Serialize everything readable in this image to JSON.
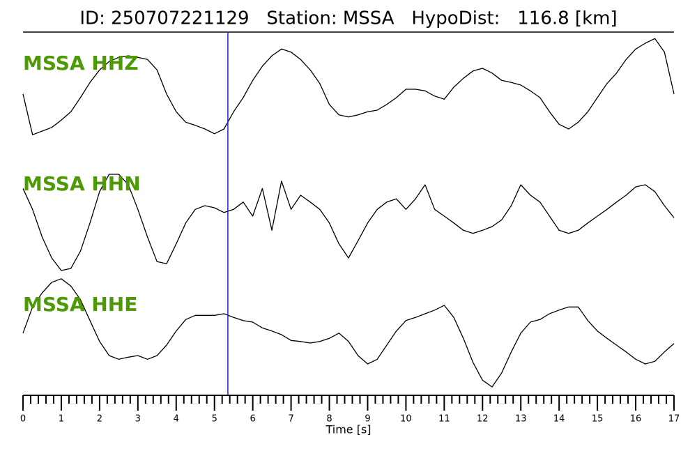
{
  "chart_data": {
    "type": "seismogram",
    "title": "ID: 250707221129   Station: MSSA   HypoDist:   116.8 [km]",
    "xlabel": "Time [s]",
    "xlim": [
      0,
      17
    ],
    "xticks": [
      0,
      1,
      2,
      3,
      4,
      5,
      6,
      7,
      8,
      9,
      10,
      11,
      12,
      13,
      14,
      15,
      16,
      17
    ],
    "xminorticks": [
      0.2,
      0.4,
      0.6,
      0.8,
      1.2,
      1.4,
      1.6,
      1.8,
      2.2,
      2.4,
      2.6,
      2.8,
      3.2,
      3.4,
      3.6,
      3.8,
      4.2,
      4.4,
      4.6,
      4.8,
      5.2,
      5.4,
      5.6,
      5.8,
      6.2,
      6.4,
      6.6,
      6.8,
      7.2,
      7.4,
      7.6,
      7.8,
      8.2,
      8.4,
      8.6,
      8.8,
      9.2,
      9.4,
      9.6,
      9.8,
      10.2,
      10.4,
      10.6,
      10.8,
      11.2,
      11.4,
      11.6,
      11.8,
      12.2,
      12.4,
      12.6,
      12.8,
      13.2,
      13.4,
      13.6,
      13.8,
      14.2,
      14.4,
      14.6,
      14.8,
      15.2,
      15.4,
      15.6,
      15.8,
      16.2,
      16.4,
      16.6,
      16.8
    ],
    "pick": {
      "x": 5.35,
      "color": "#1f1fd0"
    },
    "label_color": "#4e9a06",
    "x": [
      0,
      0.25,
      0.5,
      0.75,
      1,
      1.25,
      1.5,
      1.75,
      2,
      2.25,
      2.5,
      2.75,
      3,
      3.25,
      3.5,
      3.75,
      4,
      4.25,
      4.5,
      4.75,
      5,
      5.25,
      5.5,
      5.75,
      6,
      6.25,
      6.5,
      6.75,
      7,
      7.25,
      7.5,
      7.75,
      8,
      8.25,
      8.5,
      8.75,
      9,
      9.25,
      9.5,
      9.75,
      10,
      10.25,
      10.5,
      10.75,
      11,
      11.25,
      11.5,
      11.75,
      12,
      12.25,
      12.5,
      12.75,
      13,
      13.25,
      13.5,
      13.75,
      14,
      14.25,
      14.5,
      14.75,
      15,
      15.25,
      15.5,
      15.75,
      16,
      16.25,
      16.5,
      16.75,
      17
    ],
    "series": [
      {
        "name": "MSSA HHZ",
        "color": "#000000",
        "ylim": [
          -1,
          1
        ],
        "values": [
          -0.09,
          -0.87,
          -0.8,
          -0.73,
          -0.59,
          -0.43,
          -0.16,
          0.13,
          0.37,
          0.53,
          0.61,
          0.64,
          0.61,
          0.57,
          0.37,
          -0.09,
          -0.43,
          -0.63,
          -0.69,
          -0.76,
          -0.85,
          -0.76,
          -0.43,
          -0.16,
          0.17,
          0.44,
          0.64,
          0.77,
          0.71,
          0.57,
          0.37,
          0.11,
          -0.29,
          -0.49,
          -0.53,
          -0.49,
          -0.43,
          -0.4,
          -0.29,
          -0.16,
          0,
          0,
          -0.03,
          -0.13,
          -0.19,
          0.04,
          0.21,
          0.35,
          0.4,
          0.31,
          0.17,
          0.13,
          0.08,
          -0.03,
          -0.16,
          -0.43,
          -0.67,
          -0.76,
          -0.63,
          -0.43,
          -0.16,
          0.11,
          0.31,
          0.57,
          0.77,
          0.88,
          0.97,
          0.71,
          -0.09
        ]
      },
      {
        "name": "MSSA HHN",
        "color": "#000000",
        "ylim": [
          -1,
          1
        ],
        "values": [
          0.53,
          0.13,
          -0.4,
          -0.8,
          -1.04,
          -1,
          -0.67,
          -0.13,
          0.47,
          0.8,
          0.8,
          0.6,
          0.13,
          -0.4,
          -0.87,
          -0.91,
          -0.53,
          -0.13,
          0.13,
          0.2,
          0.16,
          0.07,
          0.13,
          0.27,
          0,
          0.53,
          -0.27,
          0.67,
          0.13,
          0.4,
          0.27,
          0.13,
          -0.13,
          -0.53,
          -0.8,
          -0.47,
          -0.13,
          0.13,
          0.27,
          0.33,
          0.13,
          0.33,
          0.6,
          0.13,
          0,
          -0.13,
          -0.27,
          -0.33,
          -0.27,
          -0.2,
          -0.07,
          0.2,
          0.6,
          0.4,
          0.27,
          0,
          -0.27,
          -0.33,
          -0.27,
          -0.13,
          0,
          0.13,
          0.27,
          0.4,
          0.56,
          0.6,
          0.47,
          0.2,
          -0.03
        ]
      },
      {
        "name": "MSSA HHE",
        "color": "#000000",
        "ylim": [
          -1,
          1
        ],
        "values": [
          0.03,
          0.53,
          0.8,
          1,
          1.07,
          0.93,
          0.67,
          0.27,
          -0.13,
          -0.4,
          -0.47,
          -0.43,
          -0.4,
          -0.47,
          -0.4,
          -0.2,
          0.07,
          0.29,
          0.37,
          0.37,
          0.37,
          0.4,
          0.33,
          0.27,
          0.24,
          0.13,
          0.07,
          0,
          -0.11,
          -0.13,
          -0.16,
          -0.13,
          -0.07,
          0.03,
          -0.13,
          -0.4,
          -0.56,
          -0.47,
          -0.2,
          0.07,
          0.27,
          0.33,
          0.4,
          0.47,
          0.56,
          0.33,
          -0.07,
          -0.53,
          -0.87,
          -1,
          -0.73,
          -0.33,
          0.03,
          0.24,
          0.29,
          0.4,
          0.47,
          0.53,
          0.53,
          0.27,
          0.07,
          -0.07,
          -0.2,
          -0.33,
          -0.47,
          -0.56,
          -0.51,
          -0.33,
          -0.17
        ]
      }
    ]
  }
}
